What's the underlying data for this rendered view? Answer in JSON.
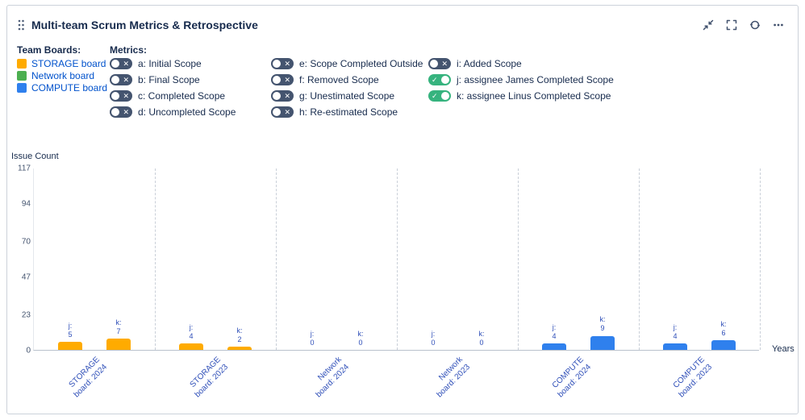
{
  "header": {
    "title": "Multi-team Scrum Metrics & Retrospective"
  },
  "team_boards": {
    "label": "Team Boards:",
    "items": [
      {
        "name": "STORAGE board",
        "color": "#FFAB00"
      },
      {
        "name": "Network board",
        "color": "#4CAF50"
      },
      {
        "name": "COMPUTE board",
        "color": "#2F80ED"
      }
    ]
  },
  "metrics": {
    "label": "Metrics:",
    "toggle_on_color": "#36B37E",
    "toggle_off_color": "#44546F",
    "toggles": [
      {
        "id": "a",
        "label": "a: Initial Scope",
        "on": false
      },
      {
        "id": "b",
        "label": "b: Final Scope",
        "on": false
      },
      {
        "id": "c",
        "label": "c: Completed Scope",
        "on": false
      },
      {
        "id": "d",
        "label": "d: Uncompleted Scope",
        "on": false
      },
      {
        "id": "e",
        "label": "e: Scope Completed Outside",
        "on": false
      },
      {
        "id": "f",
        "label": "f: Removed Scope",
        "on": false
      },
      {
        "id": "g",
        "label": "g: Unestimated Scope",
        "on": false
      },
      {
        "id": "h",
        "label": "h: Re-estimated Scope",
        "on": false
      },
      {
        "id": "i",
        "label": "i: Added Scope",
        "on": false
      },
      {
        "id": "j",
        "label": "j: assignee James Completed Scope",
        "on": true
      },
      {
        "id": "k",
        "label": "k: assignee Linus Completed Scope",
        "on": true
      }
    ]
  },
  "chart_data": {
    "type": "bar",
    "ylabel": "Issue Count",
    "xlabel": "Years",
    "ylim": [
      0,
      117
    ],
    "yticks": [
      0,
      23,
      47,
      70,
      94,
      117
    ],
    "grid": "dashed-vertical",
    "legend_position": "none",
    "categories": [
      "STORAGE board: 2024",
      "STORAGE board: 2023",
      "Network board: 2024",
      "Network board: 2023",
      "COMPUTE board: 2024",
      "COMPUTE board: 2023"
    ],
    "category_colors": [
      "#FFAB00",
      "#FFAB00",
      "#4CAF50",
      "#4CAF50",
      "#2F80ED",
      "#2F80ED"
    ],
    "series": [
      {
        "name": "j",
        "values": [
          5,
          4,
          0,
          0,
          4,
          4
        ]
      },
      {
        "name": "k",
        "values": [
          7,
          2,
          0,
          0,
          9,
          6
        ]
      }
    ]
  }
}
